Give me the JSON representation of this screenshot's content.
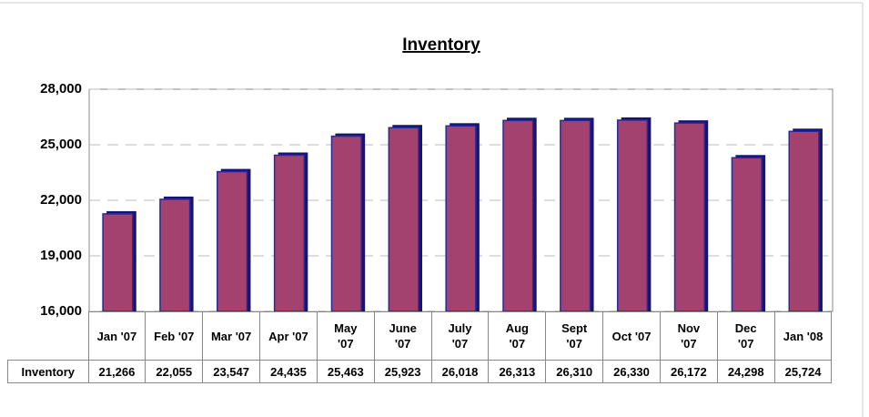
{
  "chart_data": {
    "type": "bar",
    "title": "Inventory",
    "categories": [
      "Jan '07",
      "Feb '07",
      "Mar '07",
      "Apr '07",
      "May\n'07",
      "June\n'07",
      "July\n'07",
      "Aug\n'07",
      "Sept\n'07",
      "Oct '07",
      "Nov\n'07",
      "Dec\n'07",
      "Jan '08"
    ],
    "series": [
      {
        "name": "Inventory",
        "color": "#a3416f",
        "values": [
          21266,
          22055,
          23547,
          24435,
          25463,
          25923,
          26018,
          26313,
          26310,
          26330,
          26172,
          24298,
          25724
        ],
        "value_labels": [
          "21,266",
          "22,055",
          "23,547",
          "24,435",
          "25,463",
          "25,923",
          "26,018",
          "26,313",
          "26,310",
          "26,330",
          "26,172",
          "24,298",
          "25,724"
        ]
      }
    ],
    "ylim": [
      16000,
      28000
    ],
    "yticks": [
      {
        "value": 16000,
        "label": "16,000"
      },
      {
        "value": 19000,
        "label": "19,000"
      },
      {
        "value": 22000,
        "label": "22,000"
      },
      {
        "value": 25000,
        "label": "25,000"
      },
      {
        "value": 28000,
        "label": "28,000"
      }
    ],
    "grid": true
  }
}
